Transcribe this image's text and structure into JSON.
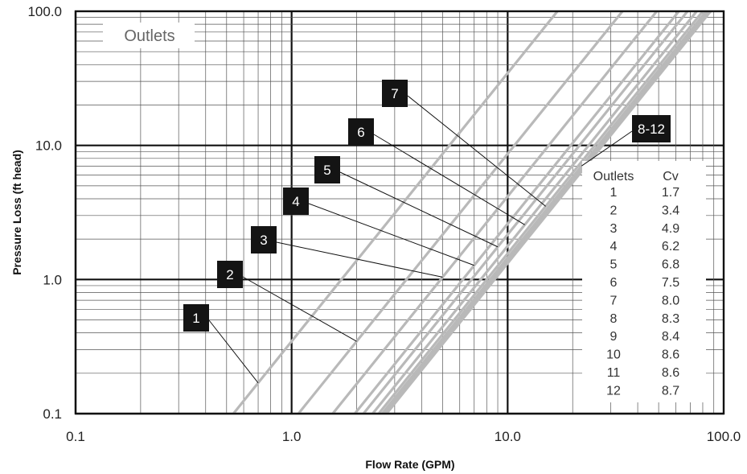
{
  "chart_data": {
    "type": "line",
    "title": "",
    "xlabel": "Flow Rate (GPM)",
    "ylabel": "Pressure Loss (ft head)",
    "xscale": "log",
    "yscale": "log",
    "xlim": [
      0.1,
      100
    ],
    "ylim": [
      0.1,
      100
    ],
    "x_ticks": [
      "0.1",
      "1.0",
      "10.0",
      "100.0"
    ],
    "y_ticks": [
      "0.1",
      "1.0",
      "10.0",
      "100.0"
    ],
    "grid": true,
    "series_color": "#b9b9b9",
    "legend_label": "Outlets",
    "formula": "pressure_loss = (flow / Cv)^2",
    "series": [
      {
        "name": "1",
        "cv": 1.7
      },
      {
        "name": "2",
        "cv": 3.4
      },
      {
        "name": "3",
        "cv": 4.9
      },
      {
        "name": "4",
        "cv": 6.2
      },
      {
        "name": "5",
        "cv": 6.8
      },
      {
        "name": "6",
        "cv": 7.5
      },
      {
        "name": "7",
        "cv": 8.0
      },
      {
        "name": "8",
        "cv": 8.3
      },
      {
        "name": "9",
        "cv": 8.4
      },
      {
        "name": "10",
        "cv": 8.6
      },
      {
        "name": "11",
        "cv": 8.6
      },
      {
        "name": "12",
        "cv": 8.7
      }
    ],
    "callouts": [
      {
        "label": "1",
        "target_flow": 0.7
      },
      {
        "label": "2",
        "target_flow": 2.0
      },
      {
        "label": "3",
        "target_flow": 5.0
      },
      {
        "label": "4",
        "target_flow": 7.0
      },
      {
        "label": "5",
        "target_flow": 9.0
      },
      {
        "label": "6",
        "target_flow": 12.0
      },
      {
        "label": "7",
        "target_flow": 15.0
      },
      {
        "label": "8-12",
        "target_flow": 22.0
      }
    ],
    "table": {
      "headers": [
        "Outlets",
        "Cv"
      ],
      "rows": [
        [
          "1",
          "1.7"
        ],
        [
          "2",
          "3.4"
        ],
        [
          "3",
          "4.9"
        ],
        [
          "4",
          "6.2"
        ],
        [
          "5",
          "6.8"
        ],
        [
          "6",
          "7.5"
        ],
        [
          "7",
          "8.0"
        ],
        [
          "8",
          "8.3"
        ],
        [
          "9",
          "8.4"
        ],
        [
          "10",
          "8.6"
        ],
        [
          "11",
          "8.6"
        ],
        [
          "12",
          "8.7"
        ]
      ]
    }
  }
}
